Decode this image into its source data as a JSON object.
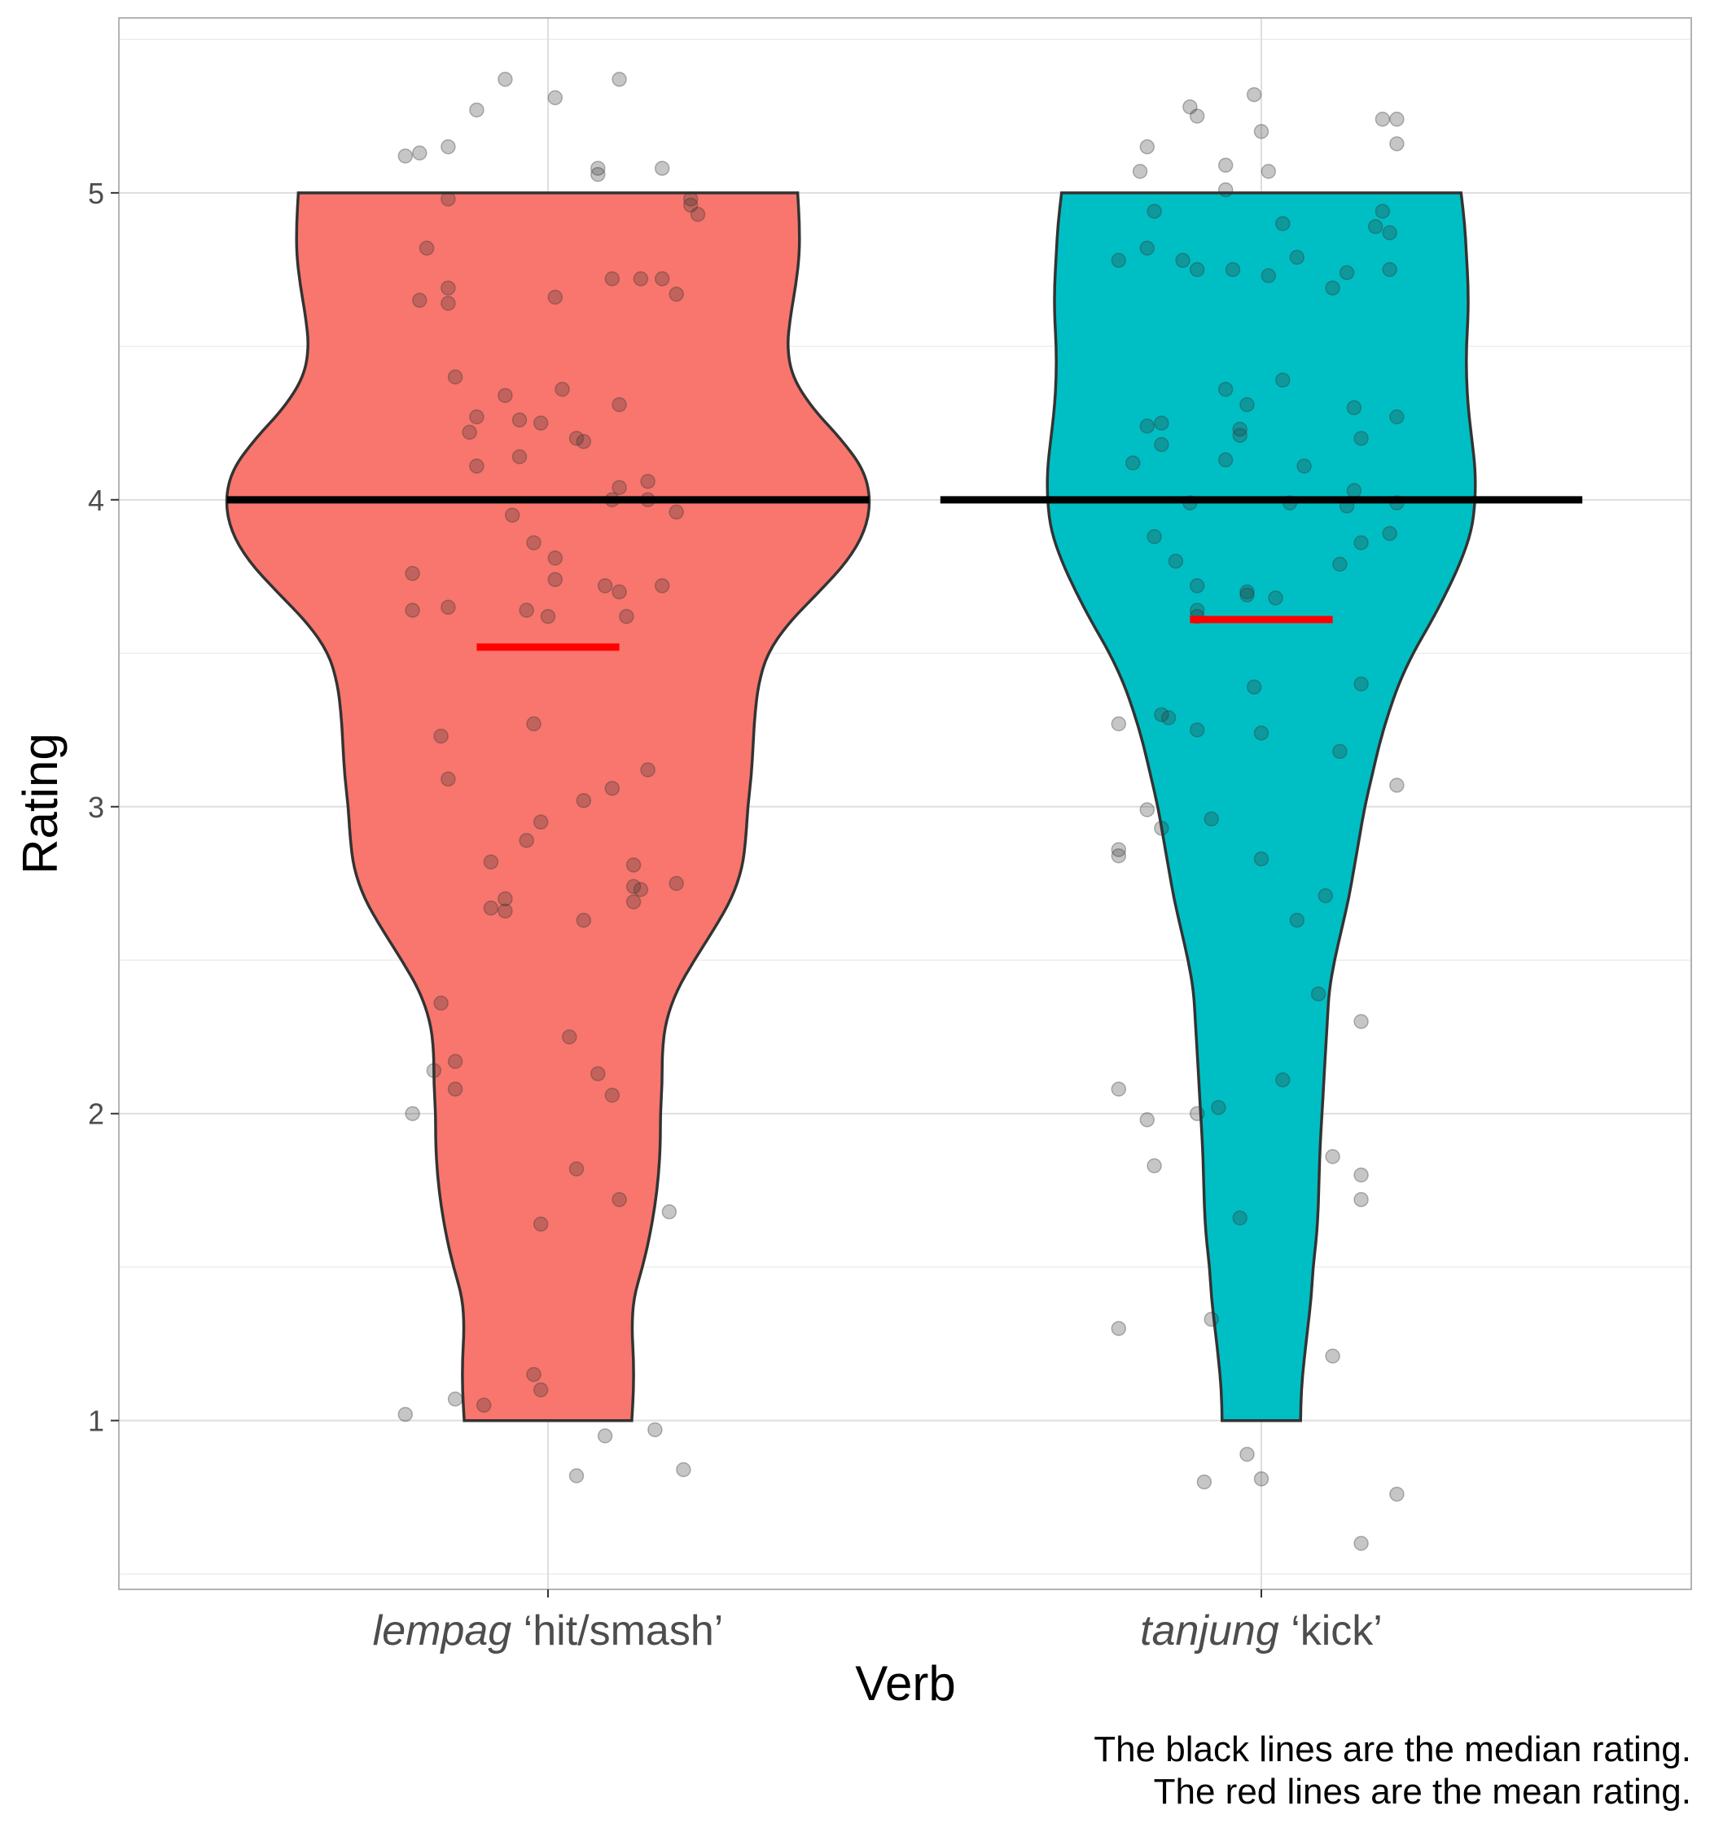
{
  "chart_data": {
    "type": "violin",
    "xlabel": "Verb",
    "ylabel": "Rating",
    "ylim": [
      0.45,
      5.57
    ],
    "yticks": [
      "1",
      "2",
      "3",
      "4",
      "5"
    ],
    "grid": true,
    "caption_lines": [
      "The black lines are the median rating.",
      "The red lines are the mean rating."
    ],
    "median_color": "#000000",
    "mean_color": "#ff0000",
    "point_color": "#333333",
    "groups": [
      {
        "label_italic": "lempag",
        "label_gloss": " ‘hit/smash’",
        "fill": "#f8766d",
        "median": 4.0,
        "mean": 3.52,
        "violin_profile": [
          [
            1.0,
            0.235
          ],
          [
            1.1,
            0.24
          ],
          [
            1.2,
            0.24
          ],
          [
            1.3,
            0.235
          ],
          [
            1.4,
            0.24
          ],
          [
            1.5,
            0.265
          ],
          [
            1.6,
            0.285
          ],
          [
            1.7,
            0.3
          ],
          [
            1.8,
            0.31
          ],
          [
            1.9,
            0.315
          ],
          [
            2.0,
            0.315
          ],
          [
            2.1,
            0.32
          ],
          [
            2.2,
            0.32
          ],
          [
            2.3,
            0.33
          ],
          [
            2.4,
            0.36
          ],
          [
            2.5,
            0.41
          ],
          [
            2.6,
            0.465
          ],
          [
            2.7,
            0.515
          ],
          [
            2.8,
            0.545
          ],
          [
            2.9,
            0.555
          ],
          [
            3.0,
            0.56
          ],
          [
            3.1,
            0.57
          ],
          [
            3.2,
            0.575
          ],
          [
            3.3,
            0.58
          ],
          [
            3.4,
            0.59
          ],
          [
            3.5,
            0.615
          ],
          [
            3.6,
            0.675
          ],
          [
            3.7,
            0.76
          ],
          [
            3.8,
            0.84
          ],
          [
            3.9,
            0.89
          ],
          [
            4.0,
            0.905
          ],
          [
            4.1,
            0.885
          ],
          [
            4.2,
            0.82
          ],
          [
            4.3,
            0.74
          ],
          [
            4.4,
            0.685
          ],
          [
            4.5,
            0.67
          ],
          [
            4.6,
            0.68
          ],
          [
            4.7,
            0.695
          ],
          [
            4.8,
            0.705
          ],
          [
            4.9,
            0.705
          ],
          [
            5.0,
            0.7
          ]
        ],
        "points": [
          [
            -0.2,
            5.12
          ],
          [
            -0.18,
            5.13
          ],
          [
            -0.14,
            5.15
          ],
          [
            -0.1,
            5.27
          ],
          [
            -0.06,
            5.37
          ],
          [
            0.01,
            5.31
          ],
          [
            0.1,
            5.37
          ],
          [
            0.07,
            5.08
          ],
          [
            0.07,
            5.06
          ],
          [
            0.16,
            5.08
          ],
          [
            0.2,
            4.98
          ],
          [
            0.2,
            4.96
          ],
          [
            -0.14,
            4.98
          ],
          [
            -0.17,
            4.82
          ],
          [
            0.21,
            4.93
          ],
          [
            -0.18,
            4.65
          ],
          [
            -0.14,
            4.69
          ],
          [
            -0.14,
            4.64
          ],
          [
            0.01,
            4.66
          ],
          [
            0.09,
            4.72
          ],
          [
            0.13,
            4.72
          ],
          [
            0.16,
            4.72
          ],
          [
            0.18,
            4.67
          ],
          [
            -0.13,
            4.4
          ],
          [
            -0.06,
            4.34
          ],
          [
            0.02,
            4.36
          ],
          [
            -0.1,
            4.27
          ],
          [
            -0.04,
            4.26
          ],
          [
            -0.01,
            4.25
          ],
          [
            0.1,
            4.31
          ],
          [
            -0.11,
            4.22
          ],
          [
            0.04,
            4.2
          ],
          [
            0.05,
            4.19
          ],
          [
            -0.04,
            4.14
          ],
          [
            -0.1,
            4.11
          ],
          [
            0.1,
            4.04
          ],
          [
            0.14,
            4.06
          ],
          [
            0.09,
            4.0
          ],
          [
            0.14,
            4.0
          ],
          [
            0.18,
            3.96
          ],
          [
            -0.05,
            3.95
          ],
          [
            -0.02,
            3.86
          ],
          [
            0.01,
            3.81
          ],
          [
            -0.19,
            3.76
          ],
          [
            0.01,
            3.74
          ],
          [
            0.08,
            3.72
          ],
          [
            0.1,
            3.7
          ],
          [
            0.16,
            3.72
          ],
          [
            -0.19,
            3.64
          ],
          [
            -0.14,
            3.65
          ],
          [
            -0.03,
            3.64
          ],
          [
            0.0,
            3.62
          ],
          [
            0.11,
            3.62
          ],
          [
            -0.02,
            3.27
          ],
          [
            -0.15,
            3.23
          ],
          [
            -0.14,
            3.09
          ],
          [
            0.09,
            3.06
          ],
          [
            0.14,
            3.12
          ],
          [
            0.05,
            3.02
          ],
          [
            -0.01,
            2.95
          ],
          [
            -0.03,
            2.89
          ],
          [
            -0.08,
            2.82
          ],
          [
            0.12,
            2.81
          ],
          [
            0.18,
            2.75
          ],
          [
            -0.06,
            2.7
          ],
          [
            -0.08,
            2.67
          ],
          [
            -0.06,
            2.66
          ],
          [
            0.05,
            2.63
          ],
          [
            0.12,
            2.74
          ],
          [
            0.13,
            2.73
          ],
          [
            0.12,
            2.69
          ],
          [
            -0.15,
            2.36
          ],
          [
            0.03,
            2.25
          ],
          [
            -0.13,
            2.17
          ],
          [
            -0.16,
            2.14
          ],
          [
            -0.13,
            2.08
          ],
          [
            0.07,
            2.13
          ],
          [
            0.09,
            2.06
          ],
          [
            -0.19,
            2.0
          ],
          [
            0.04,
            1.82
          ],
          [
            0.1,
            1.72
          ],
          [
            0.17,
            1.68
          ],
          [
            -0.01,
            1.64
          ],
          [
            -0.02,
            1.15
          ],
          [
            -0.01,
            1.1
          ],
          [
            -0.13,
            1.07
          ],
          [
            -0.09,
            1.05
          ],
          [
            -0.2,
            1.02
          ],
          [
            0.15,
            0.97
          ],
          [
            0.08,
            0.95
          ],
          [
            0.04,
            0.82
          ],
          [
            0.19,
            0.84
          ]
        ]
      },
      {
        "label_italic": "tanjung",
        "label_gloss": " ‘kick’",
        "fill": "#00bfc4",
        "median": 4.0,
        "mean": 3.61,
        "violin_profile": [
          [
            1.0,
            0.11
          ],
          [
            1.1,
            0.112
          ],
          [
            1.2,
            0.12
          ],
          [
            1.3,
            0.13
          ],
          [
            1.4,
            0.14
          ],
          [
            1.5,
            0.145
          ],
          [
            1.6,
            0.155
          ],
          [
            1.7,
            0.16
          ],
          [
            1.8,
            0.162
          ],
          [
            1.9,
            0.165
          ],
          [
            2.0,
            0.17
          ],
          [
            2.1,
            0.175
          ],
          [
            2.2,
            0.18
          ],
          [
            2.3,
            0.185
          ],
          [
            2.4,
            0.19
          ],
          [
            2.5,
            0.205
          ],
          [
            2.6,
            0.225
          ],
          [
            2.7,
            0.245
          ],
          [
            2.8,
            0.26
          ],
          [
            2.9,
            0.275
          ],
          [
            3.0,
            0.29
          ],
          [
            3.1,
            0.31
          ],
          [
            3.2,
            0.33
          ],
          [
            3.3,
            0.355
          ],
          [
            3.4,
            0.385
          ],
          [
            3.5,
            0.425
          ],
          [
            3.6,
            0.475
          ],
          [
            3.7,
            0.52
          ],
          [
            3.8,
            0.56
          ],
          [
            3.9,
            0.59
          ],
          [
            4.0,
            0.6
          ],
          [
            4.1,
            0.6
          ],
          [
            4.2,
            0.59
          ],
          [
            4.3,
            0.58
          ],
          [
            4.4,
            0.575
          ],
          [
            4.5,
            0.575
          ],
          [
            4.6,
            0.58
          ],
          [
            4.7,
            0.58
          ],
          [
            4.8,
            0.575
          ],
          [
            4.9,
            0.57
          ],
          [
            5.0,
            0.56
          ]
        ],
        "points": [
          [
            -0.16,
            5.15
          ],
          [
            -0.17,
            5.07
          ],
          [
            -0.1,
            5.28
          ],
          [
            -0.09,
            5.25
          ],
          [
            -0.01,
            5.32
          ],
          [
            0.0,
            5.2
          ],
          [
            -0.05,
            5.09
          ],
          [
            0.01,
            5.07
          ],
          [
            -0.05,
            5.01
          ],
          [
            0.17,
            5.24
          ],
          [
            0.19,
            5.24
          ],
          [
            0.19,
            5.16
          ],
          [
            -0.15,
            4.94
          ],
          [
            0.03,
            4.9
          ],
          [
            0.16,
            4.89
          ],
          [
            0.17,
            4.94
          ],
          [
            0.18,
            4.87
          ],
          [
            -0.2,
            4.78
          ],
          [
            -0.16,
            4.82
          ],
          [
            -0.11,
            4.78
          ],
          [
            -0.09,
            4.75
          ],
          [
            -0.04,
            4.75
          ],
          [
            0.01,
            4.73
          ],
          [
            0.05,
            4.79
          ],
          [
            0.1,
            4.69
          ],
          [
            0.12,
            4.74
          ],
          [
            0.18,
            4.75
          ],
          [
            0.03,
            4.39
          ],
          [
            -0.05,
            4.36
          ],
          [
            -0.02,
            4.31
          ],
          [
            0.19,
            4.27
          ],
          [
            -0.14,
            4.25
          ],
          [
            -0.16,
            4.24
          ],
          [
            -0.14,
            4.18
          ],
          [
            0.13,
            4.3
          ],
          [
            0.14,
            4.2
          ],
          [
            -0.03,
            4.23
          ],
          [
            -0.03,
            4.21
          ],
          [
            -0.05,
            4.13
          ],
          [
            -0.18,
            4.12
          ],
          [
            0.06,
            4.11
          ],
          [
            0.13,
            4.03
          ],
          [
            -0.1,
            3.99
          ],
          [
            0.04,
            3.99
          ],
          [
            0.12,
            3.98
          ],
          [
            0.19,
            3.99
          ],
          [
            -0.15,
            3.88
          ],
          [
            0.14,
            3.86
          ],
          [
            0.18,
            3.89
          ],
          [
            -0.12,
            3.8
          ],
          [
            0.11,
            3.79
          ],
          [
            -0.09,
            3.72
          ],
          [
            -0.02,
            3.7
          ],
          [
            -0.02,
            3.69
          ],
          [
            0.02,
            3.68
          ],
          [
            -0.09,
            3.64
          ],
          [
            -0.09,
            3.62
          ],
          [
            -0.01,
            3.39
          ],
          [
            0.14,
            3.4
          ],
          [
            -0.14,
            3.3
          ],
          [
            -0.13,
            3.29
          ],
          [
            -0.09,
            3.25
          ],
          [
            -0.2,
            3.27
          ],
          [
            0.0,
            3.24
          ],
          [
            0.11,
            3.18
          ],
          [
            0.19,
            3.07
          ],
          [
            -0.16,
            2.99
          ],
          [
            -0.14,
            2.93
          ],
          [
            -0.07,
            2.96
          ],
          [
            -0.2,
            2.86
          ],
          [
            -0.2,
            2.84
          ],
          [
            0.0,
            2.83
          ],
          [
            0.09,
            2.71
          ],
          [
            0.05,
            2.63
          ],
          [
            0.08,
            2.39
          ],
          [
            0.14,
            2.3
          ],
          [
            0.03,
            2.11
          ],
          [
            -0.2,
            2.08
          ],
          [
            -0.16,
            1.98
          ],
          [
            -0.09,
            2.0
          ],
          [
            -0.06,
            2.02
          ],
          [
            0.1,
            1.86
          ],
          [
            0.14,
            1.8
          ],
          [
            -0.15,
            1.83
          ],
          [
            0.14,
            1.72
          ],
          [
            -0.03,
            1.66
          ],
          [
            -0.07,
            1.33
          ],
          [
            -0.2,
            1.3
          ],
          [
            0.1,
            1.21
          ],
          [
            -0.02,
            0.89
          ],
          [
            -0.08,
            0.8
          ],
          [
            0.0,
            0.81
          ],
          [
            0.14,
            0.6
          ],
          [
            0.19,
            0.76
          ]
        ]
      }
    ]
  }
}
